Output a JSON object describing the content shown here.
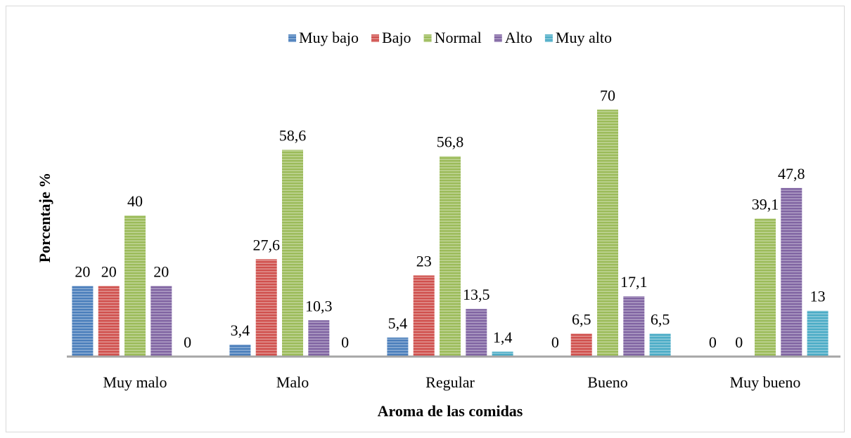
{
  "chart_data": {
    "type": "bar",
    "x_label": "Aroma de las comidas",
    "y_label": "Porcentaje %",
    "categories": [
      "Muy malo",
      "Malo",
      "Regular",
      "Bueno",
      "Muy bueno"
    ],
    "series": [
      {
        "name": "Muy bajo",
        "color": "#4a7ebb",
        "values": [
          20,
          3.4,
          5.4,
          0,
          0
        ],
        "value_labels": [
          "20",
          "3,4",
          "5,4",
          "0",
          "0"
        ]
      },
      {
        "name": "Bajo",
        "color": "#d0504d",
        "values": [
          20,
          27.6,
          23,
          6.5,
          0
        ],
        "value_labels": [
          "20",
          "27,6",
          "23",
          "6,5",
          "0"
        ]
      },
      {
        "name": "Normal",
        "color": "#9bbb59",
        "values": [
          40,
          58.6,
          56.8,
          70,
          39.1
        ],
        "value_labels": [
          "40",
          "58,6",
          "56,8",
          "70",
          "39,1"
        ]
      },
      {
        "name": "Alto",
        "color": "#8064a2",
        "values": [
          20,
          10.3,
          13.5,
          17.1,
          47.8
        ],
        "value_labels": [
          "20",
          "10,3",
          "13,5",
          "17,1",
          "47,8"
        ]
      },
      {
        "name": "Muy alto",
        "color": "#4bacc6",
        "values": [
          0,
          0,
          1.4,
          6.5,
          13
        ],
        "value_labels": [
          "0",
          "0",
          "1,4",
          "6,5",
          "13"
        ]
      }
    ],
    "ylim": [
      0,
      80
    ]
  }
}
